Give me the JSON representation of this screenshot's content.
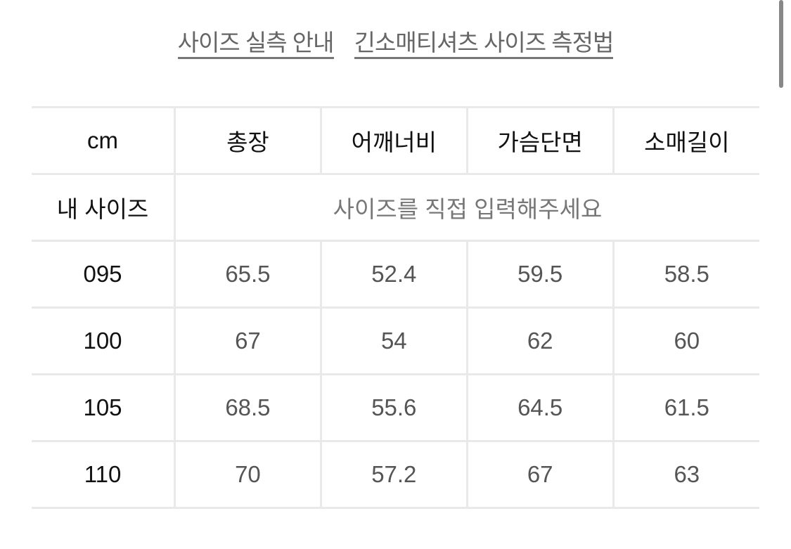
{
  "links": [
    "사이즈 실측 안내",
    "긴소매티셔츠 사이즈 측정법"
  ],
  "table": {
    "headers": [
      "cm",
      "총장",
      "어깨너비",
      "가슴단면",
      "소매길이"
    ],
    "my_size": {
      "label": "내 사이즈",
      "placeholder": "사이즈를 직접 입력해주세요"
    },
    "rows": [
      {
        "size": "095",
        "values": [
          "65.5",
          "52.4",
          "59.5",
          "58.5"
        ]
      },
      {
        "size": "100",
        "values": [
          "67",
          "54",
          "62",
          "60"
        ]
      },
      {
        "size": "105",
        "values": [
          "68.5",
          "55.6",
          "64.5",
          "61.5"
        ]
      },
      {
        "size": "110",
        "values": [
          "70",
          "57.2",
          "67",
          "63"
        ]
      }
    ]
  }
}
